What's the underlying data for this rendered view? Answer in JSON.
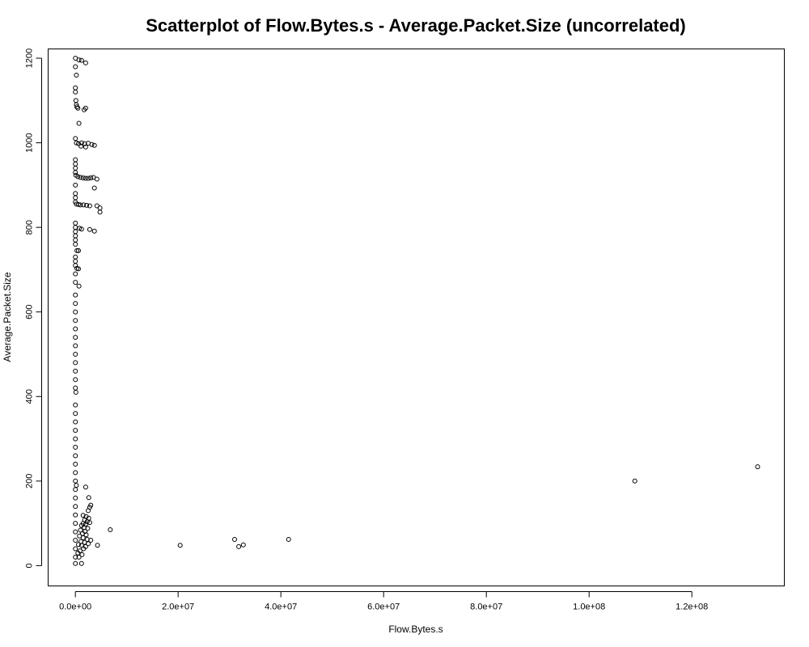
{
  "chart_data": {
    "type": "scatter",
    "title": "Scatterplot of Flow.Bytes.s - Average.Packet.Size (uncorrelated)",
    "xlabel": "Flow.Bytes.s",
    "ylabel": "Average.Packet.Size",
    "xlim": [
      -5300000,
      138000000
    ],
    "ylim": [
      -48,
      1222
    ],
    "xticks": [
      0,
      20000000,
      40000000,
      60000000,
      80000000,
      100000000,
      120000000
    ],
    "xtick_labels": [
      "0.0e+00",
      "2.0e+07",
      "4.0e+07",
      "6.0e+07",
      "8.0e+07",
      "1.0e+08",
      "1.2e+08"
    ],
    "yticks": [
      0,
      200,
      400,
      600,
      800,
      1000,
      1200
    ],
    "ytick_labels": [
      "0",
      "200",
      "400",
      "600",
      "800",
      "1000",
      "1200"
    ],
    "grid": false,
    "marker": "open-circle",
    "points": [
      [
        0,
        1200
      ],
      [
        700000,
        1196
      ],
      [
        1200000,
        1195
      ],
      [
        2000000,
        1189
      ],
      [
        0,
        1180
      ],
      [
        200000,
        1160
      ],
      [
        0,
        1130
      ],
      [
        0,
        1120
      ],
      [
        100000,
        1100
      ],
      [
        200000,
        1090
      ],
      [
        300000,
        1085
      ],
      [
        500000,
        1082
      ],
      [
        2000000,
        1082
      ],
      [
        1700000,
        1078
      ],
      [
        700000,
        1046
      ],
      [
        0,
        1010
      ],
      [
        200000,
        1000
      ],
      [
        600000,
        998
      ],
      [
        1200000,
        1000
      ],
      [
        1800000,
        998
      ],
      [
        2500000,
        999
      ],
      [
        3200000,
        996
      ],
      [
        3700000,
        994
      ],
      [
        2000000,
        990
      ],
      [
        1100000,
        992
      ],
      [
        0,
        960
      ],
      [
        0,
        950
      ],
      [
        0,
        940
      ],
      [
        0,
        930
      ],
      [
        100000,
        923
      ],
      [
        500000,
        920
      ],
      [
        1000000,
        918
      ],
      [
        1500000,
        917
      ],
      [
        2000000,
        916
      ],
      [
        2500000,
        916
      ],
      [
        3000000,
        917
      ],
      [
        3500000,
        918
      ],
      [
        4200000,
        914
      ],
      [
        3700000,
        893
      ],
      [
        0,
        900
      ],
      [
        0,
        880
      ],
      [
        0,
        870
      ],
      [
        0,
        860
      ],
      [
        200000,
        855
      ],
      [
        600000,
        854
      ],
      [
        1000000,
        853
      ],
      [
        1600000,
        853
      ],
      [
        2200000,
        852
      ],
      [
        2800000,
        851
      ],
      [
        4200000,
        851
      ],
      [
        4800000,
        846
      ],
      [
        4800000,
        836
      ],
      [
        3700000,
        791
      ],
      [
        2800000,
        795
      ],
      [
        1200000,
        796
      ],
      [
        800000,
        798
      ],
      [
        0,
        810
      ],
      [
        0,
        800
      ],
      [
        0,
        790
      ],
      [
        0,
        780
      ],
      [
        0,
        770
      ],
      [
        0,
        760
      ],
      [
        300000,
        745
      ],
      [
        600000,
        745
      ],
      [
        0,
        730
      ],
      [
        0,
        720
      ],
      [
        0,
        710
      ],
      [
        300000,
        703
      ],
      [
        600000,
        702
      ],
      [
        0,
        690
      ],
      [
        0,
        670
      ],
      [
        700000,
        661
      ],
      [
        0,
        640
      ],
      [
        0,
        620
      ],
      [
        0,
        600
      ],
      [
        0,
        580
      ],
      [
        0,
        560
      ],
      [
        0,
        540
      ],
      [
        0,
        520
      ],
      [
        0,
        500
      ],
      [
        0,
        480
      ],
      [
        0,
        460
      ],
      [
        0,
        440
      ],
      [
        0,
        420
      ],
      [
        100000,
        410
      ],
      [
        0,
        380
      ],
      [
        0,
        360
      ],
      [
        0,
        340
      ],
      [
        0,
        320
      ],
      [
        0,
        300
      ],
      [
        0,
        280
      ],
      [
        0,
        260
      ],
      [
        0,
        240
      ],
      [
        0,
        220
      ],
      [
        0,
        200
      ],
      [
        0,
        180
      ],
      [
        0,
        160
      ],
      [
        0,
        140
      ],
      [
        0,
        120
      ],
      [
        0,
        100
      ],
      [
        0,
        80
      ],
      [
        0,
        60
      ],
      [
        0,
        40
      ],
      [
        0,
        20
      ],
      [
        0,
        5
      ],
      [
        200000,
        190
      ],
      [
        2000000,
        186
      ],
      [
        2600000,
        161
      ],
      [
        3000000,
        143
      ],
      [
        2800000,
        138
      ],
      [
        2500000,
        130
      ],
      [
        1500000,
        119
      ],
      [
        2100000,
        116
      ],
      [
        2600000,
        112
      ],
      [
        1800000,
        108
      ],
      [
        2300000,
        104
      ],
      [
        2800000,
        102
      ],
      [
        1500000,
        100
      ],
      [
        2000000,
        98
      ],
      [
        1200000,
        95
      ],
      [
        1700000,
        90
      ],
      [
        2400000,
        88
      ],
      [
        1000000,
        84
      ],
      [
        1900000,
        81
      ],
      [
        1400000,
        76
      ],
      [
        2100000,
        73
      ],
      [
        800000,
        70
      ],
      [
        1500000,
        66
      ],
      [
        2300000,
        62
      ],
      [
        3000000,
        60
      ],
      [
        1100000,
        57
      ],
      [
        1800000,
        55
      ],
      [
        2500000,
        52
      ],
      [
        600000,
        50
      ],
      [
        1200000,
        48
      ],
      [
        2000000,
        45
      ],
      [
        1600000,
        40
      ],
      [
        900000,
        35
      ],
      [
        500000,
        30
      ],
      [
        1300000,
        26
      ],
      [
        700000,
        20
      ],
      [
        1200000,
        5
      ],
      [
        4300000,
        48
      ],
      [
        6800000,
        85
      ],
      [
        20400000,
        48
      ],
      [
        31000000,
        62
      ],
      [
        31800000,
        45
      ],
      [
        32700000,
        49
      ],
      [
        41500000,
        62
      ],
      [
        108900000,
        200
      ],
      [
        132800000,
        234
      ]
    ]
  }
}
